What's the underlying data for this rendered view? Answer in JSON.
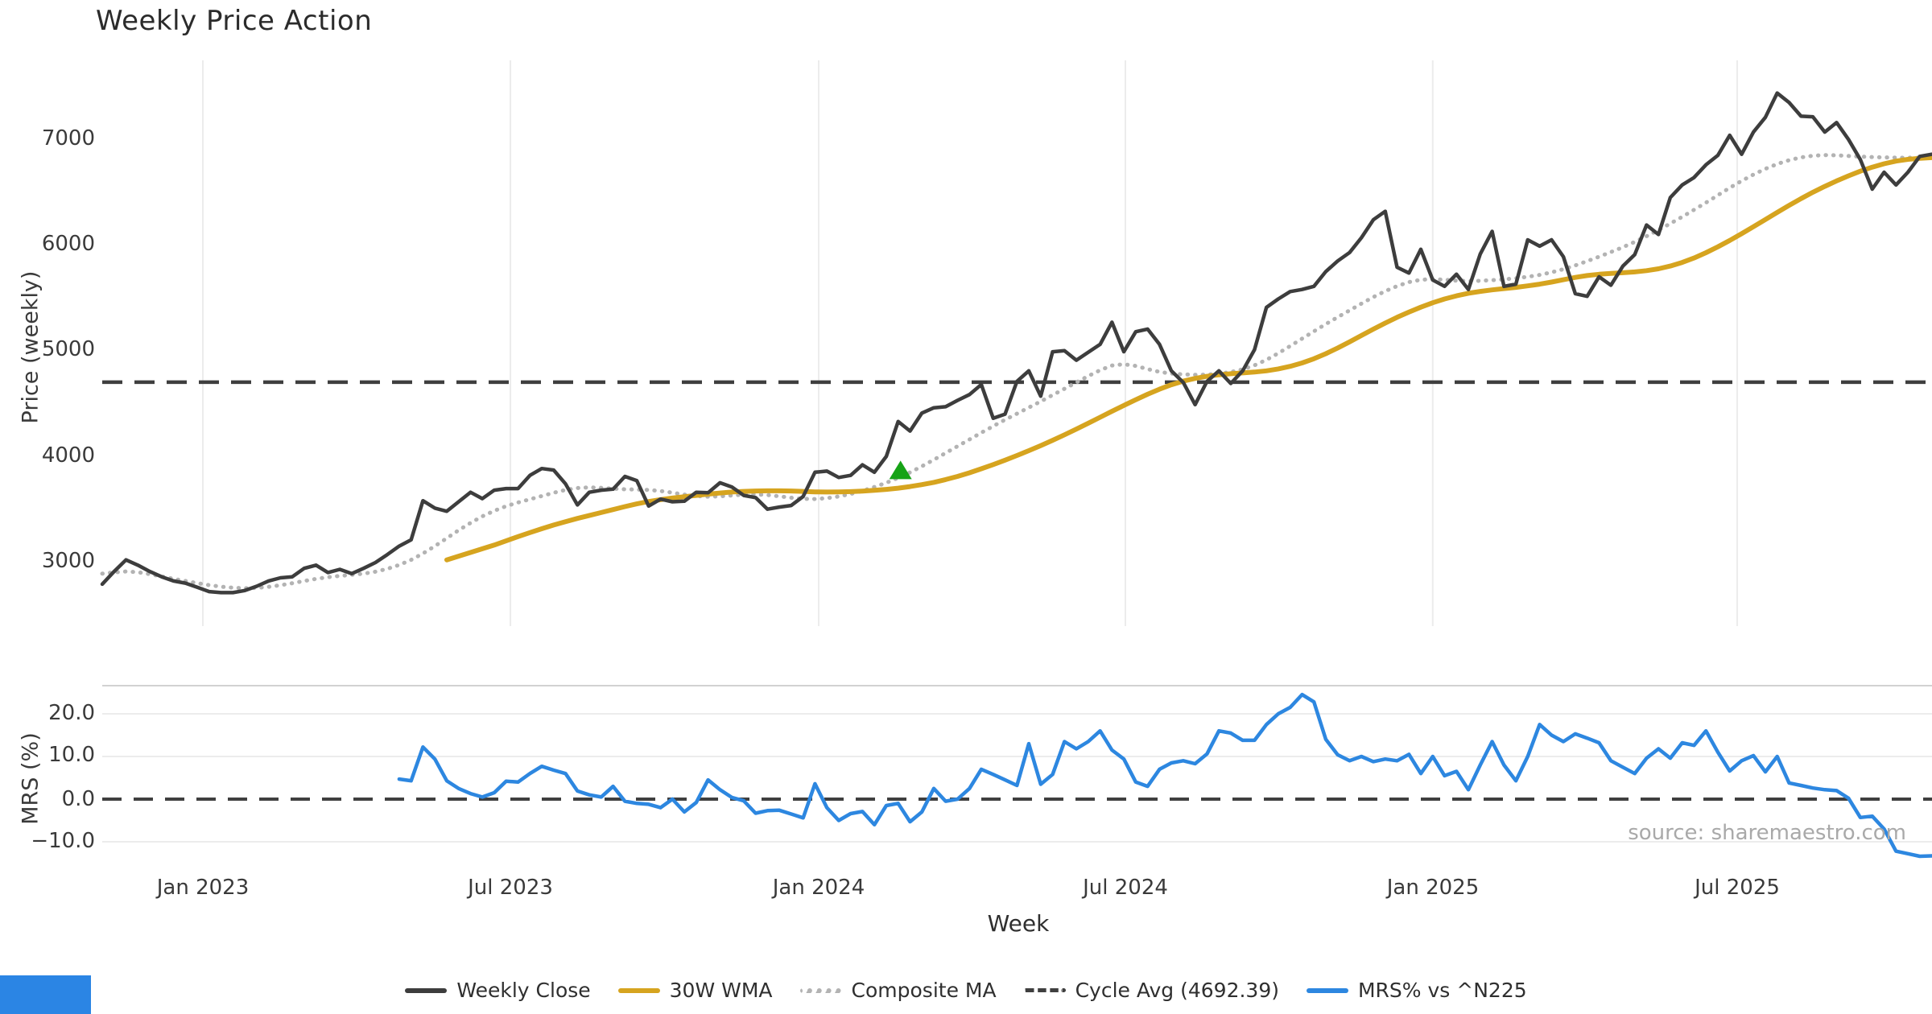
{
  "title": "Weekly Price Action",
  "source_note": "source: sharemaestro.com",
  "price_axis": {
    "label": "Price (weekly)",
    "ticks": [
      {
        "label": "7000"
      },
      {
        "label": "6000"
      },
      {
        "label": "5000"
      },
      {
        "label": "4000"
      },
      {
        "label": "3000"
      }
    ]
  },
  "mrs_axis": {
    "label": "MRS (%)",
    "ticks": [
      {
        "label": "20.0"
      },
      {
        "label": "10.0"
      },
      {
        "label": "0.0"
      },
      {
        "label": "−10.0"
      }
    ]
  },
  "x_axis": {
    "label": "Week",
    "ticks": [
      {
        "label": "Jan 2023"
      },
      {
        "label": "Jul 2023"
      },
      {
        "label": "Jan 2024"
      },
      {
        "label": "Jul 2024"
      },
      {
        "label": "Jan 2025"
      },
      {
        "label": "Jul 2025"
      }
    ]
  },
  "legend": {
    "items": [
      {
        "label": "Weekly Close",
        "color": "#3d3d3d",
        "style": "solid"
      },
      {
        "label": "30W WMA",
        "color": "#d6a41f",
        "style": "solid"
      },
      {
        "label": "Composite MA",
        "color": "#b3b3b3",
        "style": "dotted"
      },
      {
        "label": "Cycle Avg (4692.39)",
        "color": "#3f3f3f",
        "style": "dashed"
      },
      {
        "label": "MRS% vs ^N225",
        "color": "#2d87e0",
        "style": "solid"
      }
    ]
  },
  "accent_color": "#2b85e4",
  "chart_data": {
    "type": "line",
    "title": "Weekly Price Action",
    "xlabel": "Week",
    "x_unit": "week_index",
    "x_tick_labels": [
      "Jan 2023",
      "Jul 2023",
      "Jan 2024",
      "Jul 2024",
      "Jan 2025",
      "Jul 2025"
    ],
    "x_tick_weeks": [
      8.47,
      34.36,
      60.31,
      86.13,
      112.0,
      137.63
    ],
    "panels": [
      {
        "id": "price",
        "ylabel": "Price (weekly)",
        "ylim": [
          2550,
          7750
        ],
        "yticks": [
          3000,
          4000,
          5000,
          6000,
          7000
        ],
        "reference_line": {
          "name": "Cycle Avg",
          "value": 4692.39,
          "style": "dashed",
          "color": "#3f3f3f"
        },
        "marker": {
          "shape": "triangle-up",
          "color": "#17a317",
          "week": 67.2,
          "value": 3858
        }
      },
      {
        "id": "mrs",
        "ylabel": "MRS (%)",
        "ylim": [
          -17,
          26.5
        ],
        "yticks": [
          -10,
          0,
          10,
          20
        ],
        "reference_line": {
          "name": "zero",
          "value": 0,
          "style": "dashed",
          "color": "#3f3f3f"
        }
      }
    ],
    "series": [
      {
        "name": "Weekly Close",
        "panel": "price",
        "color": "#3d3d3d",
        "style": "solid",
        "start_week": 0,
        "values": [
          2780,
          2900,
          3010,
          2960,
          2900,
          2850,
          2810,
          2790,
          2750,
          2710,
          2700,
          2700,
          2720,
          2760,
          2810,
          2840,
          2850,
          2930,
          2960,
          2890,
          2920,
          2880,
          2930,
          2985,
          3060,
          3140,
          3200,
          3570,
          3500,
          3470,
          3560,
          3650,
          3590,
          3670,
          3685,
          3685,
          3810,
          3875,
          3860,
          3730,
          3530,
          3650,
          3670,
          3680,
          3800,
          3760,
          3520,
          3585,
          3560,
          3565,
          3650,
          3645,
          3740,
          3700,
          3620,
          3600,
          3490,
          3510,
          3525,
          3610,
          3840,
          3850,
          3790,
          3810,
          3910,
          3840,
          3990,
          4320,
          4230,
          4400,
          4450,
          4460,
          4520,
          4575,
          4670,
          4350,
          4390,
          4700,
          4800,
          4560,
          4980,
          4990,
          4900,
          4975,
          5050,
          5260,
          4980,
          5170,
          5195,
          5050,
          4800,
          4690,
          4480,
          4700,
          4800,
          4680,
          4800,
          5000,
          5400,
          5480,
          5550,
          5570,
          5600,
          5740,
          5840,
          5920,
          6060,
          6230,
          6310,
          5780,
          5725,
          5950,
          5660,
          5600,
          5715,
          5570,
          5905,
          6120,
          5600,
          5620,
          6040,
          5980,
          6040,
          5880,
          5530,
          5505,
          5690,
          5610,
          5790,
          5900,
          6180,
          6090,
          6440,
          6560,
          6630,
          6750,
          6840,
          7030,
          6850,
          7060,
          7200,
          7430,
          7340,
          7210,
          7205,
          7060,
          7150,
          6990,
          6800,
          6520,
          6680,
          6560,
          6680,
          6830,
          6850
        ]
      },
      {
        "name": "30W WMA",
        "panel": "price",
        "color": "#d6a41f",
        "style": "solid",
        "start_week": 29,
        "values": [
          3010,
          3045,
          3080,
          3115,
          3150,
          3190,
          3230,
          3268,
          3305,
          3340,
          3372,
          3402,
          3430,
          3458,
          3486,
          3514,
          3540,
          3562,
          3580,
          3595,
          3608,
          3620,
          3632,
          3643,
          3652,
          3658,
          3662,
          3664,
          3664,
          3662,
          3658,
          3654,
          3652,
          3653,
          3656,
          3661,
          3668,
          3677,
          3689,
          3704,
          3722,
          3744,
          3770,
          3800,
          3834,
          3872,
          3912,
          3954,
          3998,
          4044,
          4092,
          4142,
          4194,
          4248,
          4304,
          4360,
          4416,
          4472,
          4526,
          4578,
          4626,
          4668,
          4702,
          4728,
          4748,
          4762,
          4772,
          4780,
          4788,
          4800,
          4818,
          4842,
          4874,
          4914,
          4962,
          5016,
          5074,
          5134,
          5194,
          5252,
          5306,
          5356,
          5402,
          5444,
          5480,
          5510,
          5534,
          5552,
          5566,
          5578,
          5590,
          5604,
          5620,
          5640,
          5662,
          5684,
          5702,
          5714,
          5722,
          5728,
          5736,
          5748,
          5766,
          5792,
          5826,
          5868,
          5918,
          5974,
          6034,
          6098,
          6164,
          6232,
          6300,
          6366,
          6430,
          6490,
          6546,
          6598,
          6646,
          6690,
          6728,
          6760,
          6785,
          6802,
          6812,
          6818
        ]
      },
      {
        "name": "Composite MA",
        "panel": "price",
        "color": "#b3b3b3",
        "style": "dotted",
        "start_week": 0,
        "values": [
          2880,
          2892,
          2900,
          2893,
          2875,
          2853,
          2831,
          2810,
          2790,
          2771,
          2756,
          2746,
          2742,
          2745,
          2755,
          2770,
          2789,
          2810,
          2830,
          2846,
          2858,
          2868,
          2880,
          2898,
          2925,
          2962,
          3010,
          3070,
          3140,
          3215,
          3290,
          3360,
          3422,
          3475,
          3518,
          3553,
          3584,
          3614,
          3645,
          3672,
          3690,
          3696,
          3692,
          3684,
          3678,
          3676,
          3672,
          3662,
          3646,
          3628,
          3614,
          3608,
          3612,
          3620,
          3628,
          3630,
          3624,
          3612,
          3598,
          3588,
          3586,
          3594,
          3610,
          3634,
          3664,
          3700,
          3740,
          3786,
          3838,
          3896,
          3958,
          4022,
          4086,
          4150,
          4214,
          4276,
          4336,
          4394,
          4452,
          4510,
          4570,
          4630,
          4690,
          4750,
          4806,
          4850,
          4862,
          4846,
          4816,
          4790,
          4774,
          4766,
          4762,
          4764,
          4772,
          4788,
          4814,
          4852,
          4904,
          4966,
          5034,
          5104,
          5174,
          5242,
          5308,
          5372,
          5436,
          5498,
          5554,
          5602,
          5640,
          5662,
          5668,
          5662,
          5654,
          5650,
          5652,
          5658,
          5666,
          5676,
          5690,
          5708,
          5732,
          5762,
          5798,
          5838,
          5880,
          5924,
          5970,
          6020,
          6074,
          6132,
          6194,
          6258,
          6324,
          6392,
          6462,
          6532,
          6598,
          6658,
          6712,
          6758,
          6794,
          6820,
          6836,
          6842,
          6840,
          6834,
          6828,
          6823,
          6820,
          6818,
          6817,
          6817,
          6818
        ]
      },
      {
        "name": "MRS% vs ^N225",
        "panel": "mrs",
        "color": "#2d87e0",
        "style": "solid",
        "start_week": 25,
        "values": [
          4.7,
          4.3,
          12.2,
          9.4,
          4.3,
          2.5,
          1.3,
          0.5,
          1.5,
          4.2,
          4.0,
          6.0,
          7.7,
          6.8,
          6.0,
          1.9,
          1.0,
          0.5,
          3.0,
          -0.5,
          -1.0,
          -1.2,
          -2.0,
          0.0,
          -3.0,
          -0.8,
          4.5,
          2.2,
          0.4,
          -0.4,
          -3.3,
          -2.7,
          -2.6,
          -3.5,
          -4.4,
          3.6,
          -2.0,
          -5.0,
          -3.4,
          -2.9,
          -6.0,
          -1.5,
          -1.0,
          -5.3,
          -3.0,
          2.5,
          -0.5,
          0.0,
          2.5,
          7.0,
          5.8,
          4.5,
          3.2,
          13.0,
          3.5,
          5.8,
          13.5,
          11.8,
          13.5,
          16.0,
          11.5,
          9.4,
          4.0,
          3.0,
          7.0,
          8.5,
          9.0,
          8.3,
          10.6,
          16.0,
          15.5,
          13.8,
          13.8,
          17.5,
          20.0,
          21.5,
          24.5,
          22.8,
          14.0,
          10.4,
          9.0,
          10.0,
          8.8,
          9.4,
          9.0,
          10.5,
          6.0,
          10.0,
          5.5,
          6.5,
          2.2,
          8.0,
          13.5,
          8.0,
          4.3,
          10.0,
          17.5,
          15.0,
          13.5,
          15.3,
          14.3,
          13.2,
          9.0,
          7.5,
          6.0,
          9.6,
          11.8,
          9.6,
          13.2,
          12.6,
          16.0,
          11.0,
          6.6,
          9.0,
          10.2,
          6.4,
          10.0,
          3.8,
          3.2,
          2.6,
          2.2,
          2.0,
          0.2,
          -4.3,
          -4.0,
          -7.0,
          -12.2,
          -12.8,
          -13.4,
          -13.3
        ]
      }
    ]
  }
}
